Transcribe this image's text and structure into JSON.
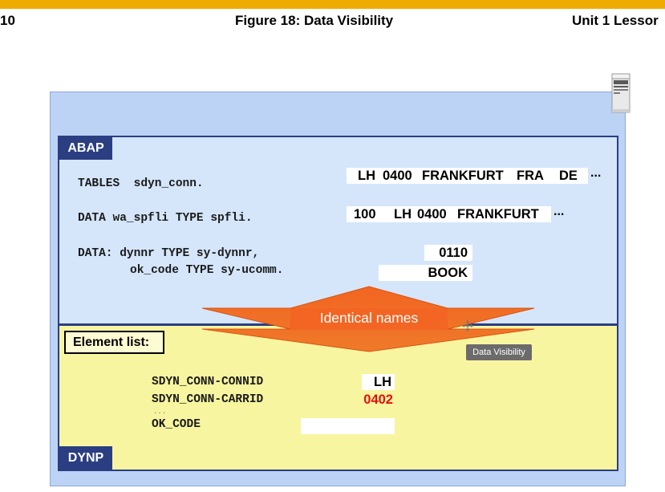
{
  "header": {
    "left": "10",
    "title": "Figure 18: Data Visibility",
    "right": "Unit 1 Lessor"
  },
  "colors": {
    "topbar": "#f0ab00",
    "frame_blue": "#2b3e82",
    "abap_bg": "#d5e6fb",
    "dynp_bg": "#f8f5a0",
    "arrow_orange": "#f06a21",
    "red_value": "#e01010"
  },
  "icons": [
    "server-icon",
    "move-cursor-icon"
  ],
  "abap": {
    "tag": "ABAP",
    "code": {
      "tables": "TABLES  sdyn_conn.",
      "data_wa": "DATA wa_spfli TYPE spfli.",
      "data_dynnr": "DATA: dynnr TYPE sy-dynnr,",
      "data_okcode": "ok_code TYPE sy-ucomm."
    },
    "values": {
      "row1": [
        "LH",
        "0400",
        "FRANKFURT",
        "FRA",
        "DE"
      ],
      "row1_more": "...",
      "row2": [
        "100",
        "LH",
        "0400",
        "FRANKFURT"
      ],
      "row2_more": "...",
      "dynnr": "0110",
      "okcode": "BOOK"
    }
  },
  "arrow": {
    "label": "Identical names"
  },
  "tooltip": "Data Visibility",
  "dynp": {
    "tag": "DYNP",
    "element_list_title": "Element list:",
    "fields": {
      "connid_name": "SDYN_CONN-CONNID",
      "connid_value": "LH",
      "carrid_name": "SDYN_CONN-CARRID",
      "carrid_value": "0402",
      "ellipsis": "...",
      "okcode_name": "OK_CODE",
      "okcode_value": ""
    }
  }
}
